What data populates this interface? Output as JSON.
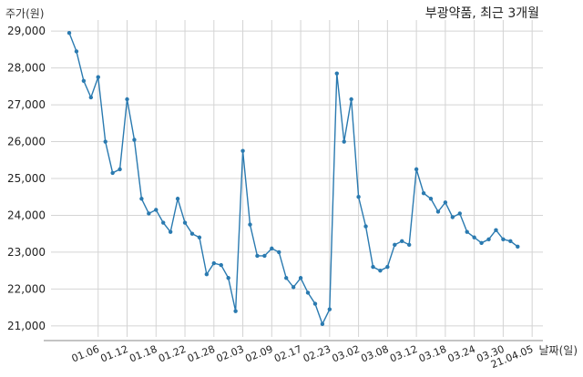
{
  "chart_data": {
    "type": "line",
    "title": "부광약품, 최근 3개월",
    "xlabel": "날짜(일)",
    "ylabel": "주가(원)",
    "ylim": [
      20700,
      29300
    ],
    "yticks": [
      21000,
      22000,
      23000,
      24000,
      25000,
      26000,
      27000,
      28000,
      29000
    ],
    "ytick_labels": [
      "21,000",
      "22,000",
      "23,000",
      "24,000",
      "25,000",
      "26,000",
      "27,000",
      "28,000",
      "29,000"
    ],
    "xticks": [
      {
        "label": "01.06",
        "index": 4
      },
      {
        "label": "01.12",
        "index": 8
      },
      {
        "label": "01.18",
        "index": 12
      },
      {
        "label": "01.22",
        "index": 16
      },
      {
        "label": "01.28",
        "index": 20
      },
      {
        "label": "02.03",
        "index": 24
      },
      {
        "label": "02.09",
        "index": 28
      },
      {
        "label": "02.17",
        "index": 32
      },
      {
        "label": "02.23",
        "index": 36
      },
      {
        "label": "03.02",
        "index": 40
      },
      {
        "label": "03.08",
        "index": 44
      },
      {
        "label": "03.12",
        "index": 48
      },
      {
        "label": "03.18",
        "index": 52
      },
      {
        "label": "03.24",
        "index": 56
      },
      {
        "label": "03.30",
        "index": 60
      },
      {
        "label": "21.04.05",
        "index": 64
      }
    ],
    "grid": true,
    "color": "#2a7ab0",
    "series": [
      {
        "values": [
          28950,
          28450,
          27650,
          27200,
          27750,
          26000,
          25150,
          25250,
          27150,
          26050,
          24450,
          24050,
          24150,
          23800,
          23550,
          24450,
          23800,
          23500,
          23400,
          22400,
          22700,
          22650,
          22300,
          21400,
          25750,
          23750,
          22900,
          22900,
          23100,
          23000,
          22300,
          22050,
          22300,
          21900,
          21600,
          21050,
          21450,
          27850,
          26000,
          27150,
          24500,
          23700,
          22600,
          22500,
          22600,
          23200,
          23300,
          23200,
          25250,
          24600,
          24450,
          24100,
          24350,
          23950,
          24050,
          23550,
          23400,
          23250,
          23350,
          23600,
          23350,
          23300,
          23150
        ]
      }
    ]
  }
}
